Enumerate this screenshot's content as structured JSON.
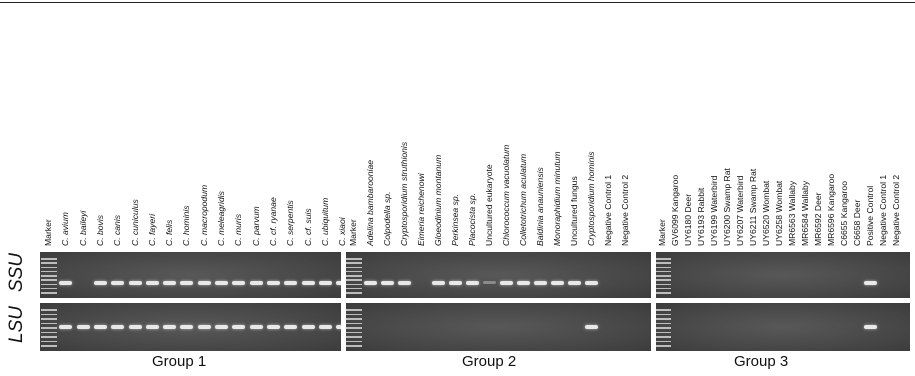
{
  "groups": [
    {
      "name": "Group 1",
      "lanes": [
        {
          "label": "Marker",
          "italic": false
        },
        {
          "label": "C. avium",
          "italic": true
        },
        {
          "label": "C. baileyi",
          "italic": true
        },
        {
          "label": "C. bovis",
          "italic": true
        },
        {
          "label": "C. canis",
          "italic": true
        },
        {
          "label": "C. cuniculus",
          "italic": true
        },
        {
          "label": "C. fayeri",
          "italic": true
        },
        {
          "label": "C. felis",
          "italic": true
        },
        {
          "label": "C. hominis",
          "italic": true
        },
        {
          "label": "C. macropodum",
          "italic": true
        },
        {
          "label": "C. meleagridis",
          "italic": true
        },
        {
          "label": "C. muris",
          "italic": true
        },
        {
          "label": "C. parvum",
          "italic": true
        },
        {
          "label": "C. cf. ryanae",
          "italic": true
        },
        {
          "label": "C. serpentis",
          "italic": true
        },
        {
          "label": "C. cf. suis",
          "italic": true
        },
        {
          "label": "C. ubiquitum",
          "italic": true
        },
        {
          "label": "C. xiaoi",
          "italic": true
        }
      ],
      "ssu": [
        0,
        1,
        0,
        1,
        1,
        1,
        1,
        1,
        1,
        1,
        1,
        1,
        1,
        1,
        1,
        1,
        1,
        1
      ],
      "lsu": [
        0,
        1,
        1,
        1,
        1,
        1,
        1,
        1,
        1,
        1,
        1,
        1,
        1,
        1,
        1,
        1,
        1,
        1
      ]
    },
    {
      "name": "Group 2",
      "lanes": [
        {
          "label": "Marker",
          "italic": false
        },
        {
          "label": "Adelina bambarooniae",
          "italic": true
        },
        {
          "label": "Colpodella sp.",
          "italic": true
        },
        {
          "label": "Cryptosporidium struthionis",
          "italic": true
        },
        {
          "label": "Eimeria reichenowi",
          "italic": true
        },
        {
          "label": "Gloeodinium montanum",
          "italic": true
        },
        {
          "label": "Perkinsea sp.",
          "italic": true
        },
        {
          "label": "Placocista sp.",
          "italic": true
        },
        {
          "label": "Uncultured eukaryote",
          "italic": false
        },
        {
          "label": "Chlorococcum vacuolatum",
          "italic": true
        },
        {
          "label": "Colletotrichum aculatum",
          "italic": true
        },
        {
          "label": "Baldinia anauniensis",
          "italic": true
        },
        {
          "label": "Monoraphidium minutum",
          "italic": true
        },
        {
          "label": "Uncultured fungus",
          "italic": false
        },
        {
          "label": "Cryptosporidium hominis",
          "italic": true
        },
        {
          "label": "Negative Control 1",
          "italic": false
        },
        {
          "label": "Negative Control 2",
          "italic": false
        }
      ],
      "ssu": [
        0,
        1,
        1,
        1,
        0,
        1,
        1,
        1,
        0.4,
        1,
        1,
        1,
        1,
        1,
        1,
        0,
        0
      ],
      "lsu": [
        0,
        0,
        0,
        0,
        0,
        0,
        0,
        0,
        0,
        0,
        0,
        0,
        0,
        0,
        1,
        0,
        0
      ]
    },
    {
      "name": "Group 3",
      "lanes": [
        {
          "label": "Marker",
          "italic": false
        },
        {
          "label": "GV6099 Kangaroo",
          "italic": false
        },
        {
          "label": "UY6180 Deer",
          "italic": false
        },
        {
          "label": "UY6193 Rabbit",
          "italic": false
        },
        {
          "label": "UY6199 Waterbird",
          "italic": false
        },
        {
          "label": "UY6200 Swamp Rat",
          "italic": false
        },
        {
          "label": "UY6207 Waterbird",
          "italic": false
        },
        {
          "label": "UY6211 Swamp Rat",
          "italic": false
        },
        {
          "label": "UY6520 Wombat",
          "italic": false
        },
        {
          "label": "UY6258 Wombat",
          "italic": false
        },
        {
          "label": "MR6563 Wallaby",
          "italic": false
        },
        {
          "label": "MR6584 Wallaby",
          "italic": false
        },
        {
          "label": "MR6592 Deer",
          "italic": false
        },
        {
          "label": "MR6596 Kangaroo",
          "italic": false
        },
        {
          "label": "C6655 Kangaroo",
          "italic": false
        },
        {
          "label": "C6658 Deer",
          "italic": false
        },
        {
          "label": "Positive Control",
          "italic": false
        },
        {
          "label": "Negative Control 1",
          "italic": false
        },
        {
          "label": "Negative Control 2",
          "italic": false
        }
      ],
      "ssu": [
        0,
        0,
        0,
        0,
        0,
        0,
        0,
        0,
        0,
        0,
        0,
        0,
        0,
        0,
        0,
        0,
        1,
        0,
        0
      ],
      "lsu": [
        0,
        0,
        0,
        0,
        0,
        0,
        0,
        0,
        0,
        0,
        0,
        0,
        0,
        0,
        0,
        0,
        1,
        0,
        0
      ]
    }
  ],
  "rows": {
    "ssu": "SSU",
    "lsu": "LSU"
  }
}
